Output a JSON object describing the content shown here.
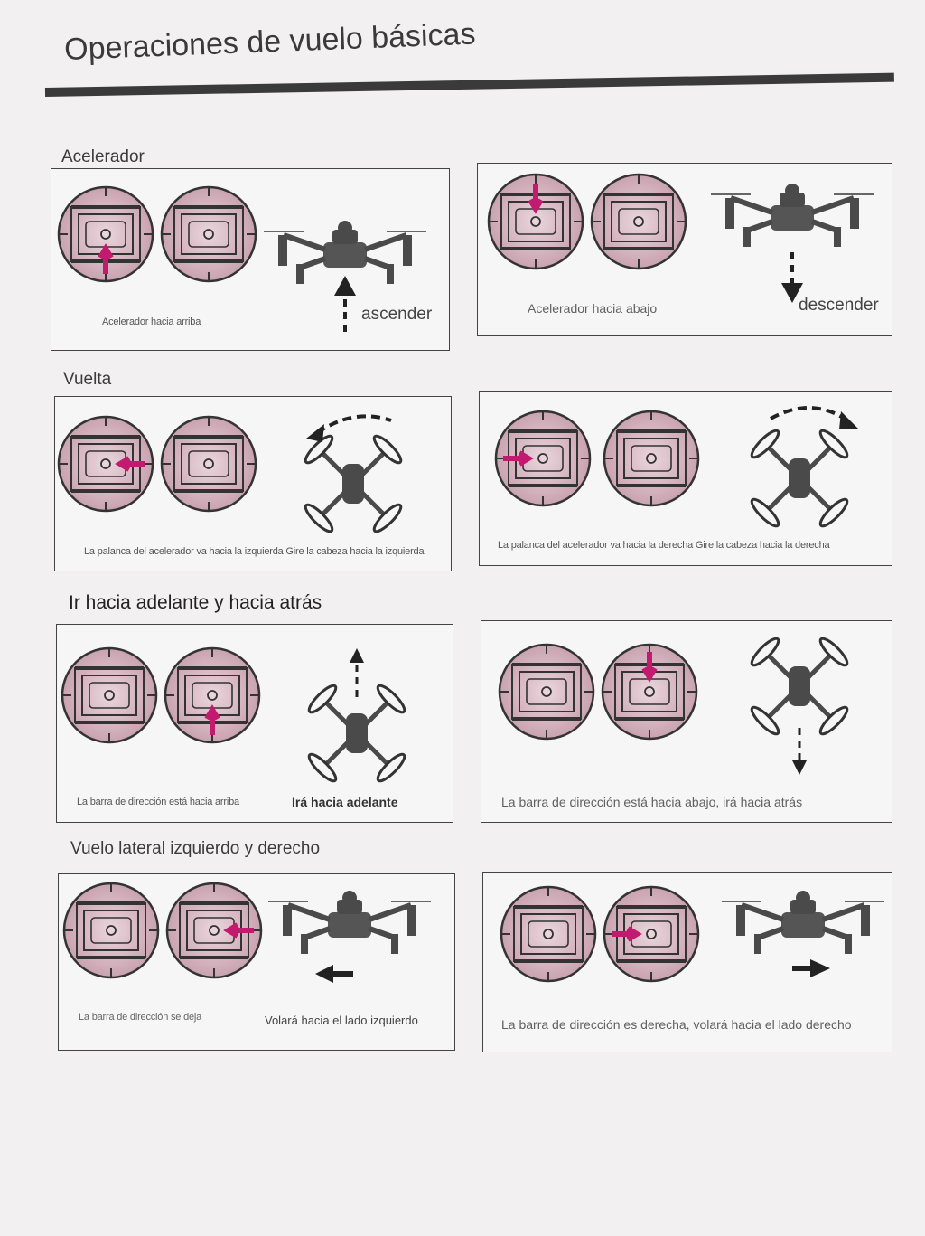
{
  "page": {
    "title": "Operaciones de vuelo básicas"
  },
  "sections": {
    "throttle": {
      "heading": "Acelerador",
      "left": {
        "caption": "Acelerador hacia arriba",
        "action": "ascender"
      },
      "right": {
        "caption": "Acelerador hacia abajo",
        "action": "descender"
      }
    },
    "turn": {
      "heading": "Vuelta",
      "left": {
        "caption": "La palanca del acelerador va hacia la izquierda Gire la cabeza hacia la izquierda"
      },
      "right": {
        "caption": "La palanca del acelerador va hacia la derecha Gire la cabeza hacia la derecha"
      }
    },
    "forward_back": {
      "heading": "Ir hacia adelante y hacia atrás",
      "left": {
        "caption": "La barra de dirección está hacia arriba",
        "action": "Irá hacia adelante"
      },
      "right": {
        "caption": "La barra de dirección está hacia abajo, irá hacia atrás"
      }
    },
    "lateral": {
      "heading": "Vuelo lateral izquierdo y derecho",
      "left": {
        "caption": "La barra de dirección se deja",
        "action": "Volará hacia el lado izquierdo"
      },
      "right": {
        "caption": "La barra de dirección es derecha, volará hacia el lado derecho"
      }
    }
  },
  "colors": {
    "accent": "#c21a6e",
    "stick_fill": "#d9b8c2",
    "ink": "#3a3a3a"
  },
  "icons": [
    "joystick-icon",
    "drone-side-icon",
    "drone-top-icon",
    "arrow-icon"
  ]
}
